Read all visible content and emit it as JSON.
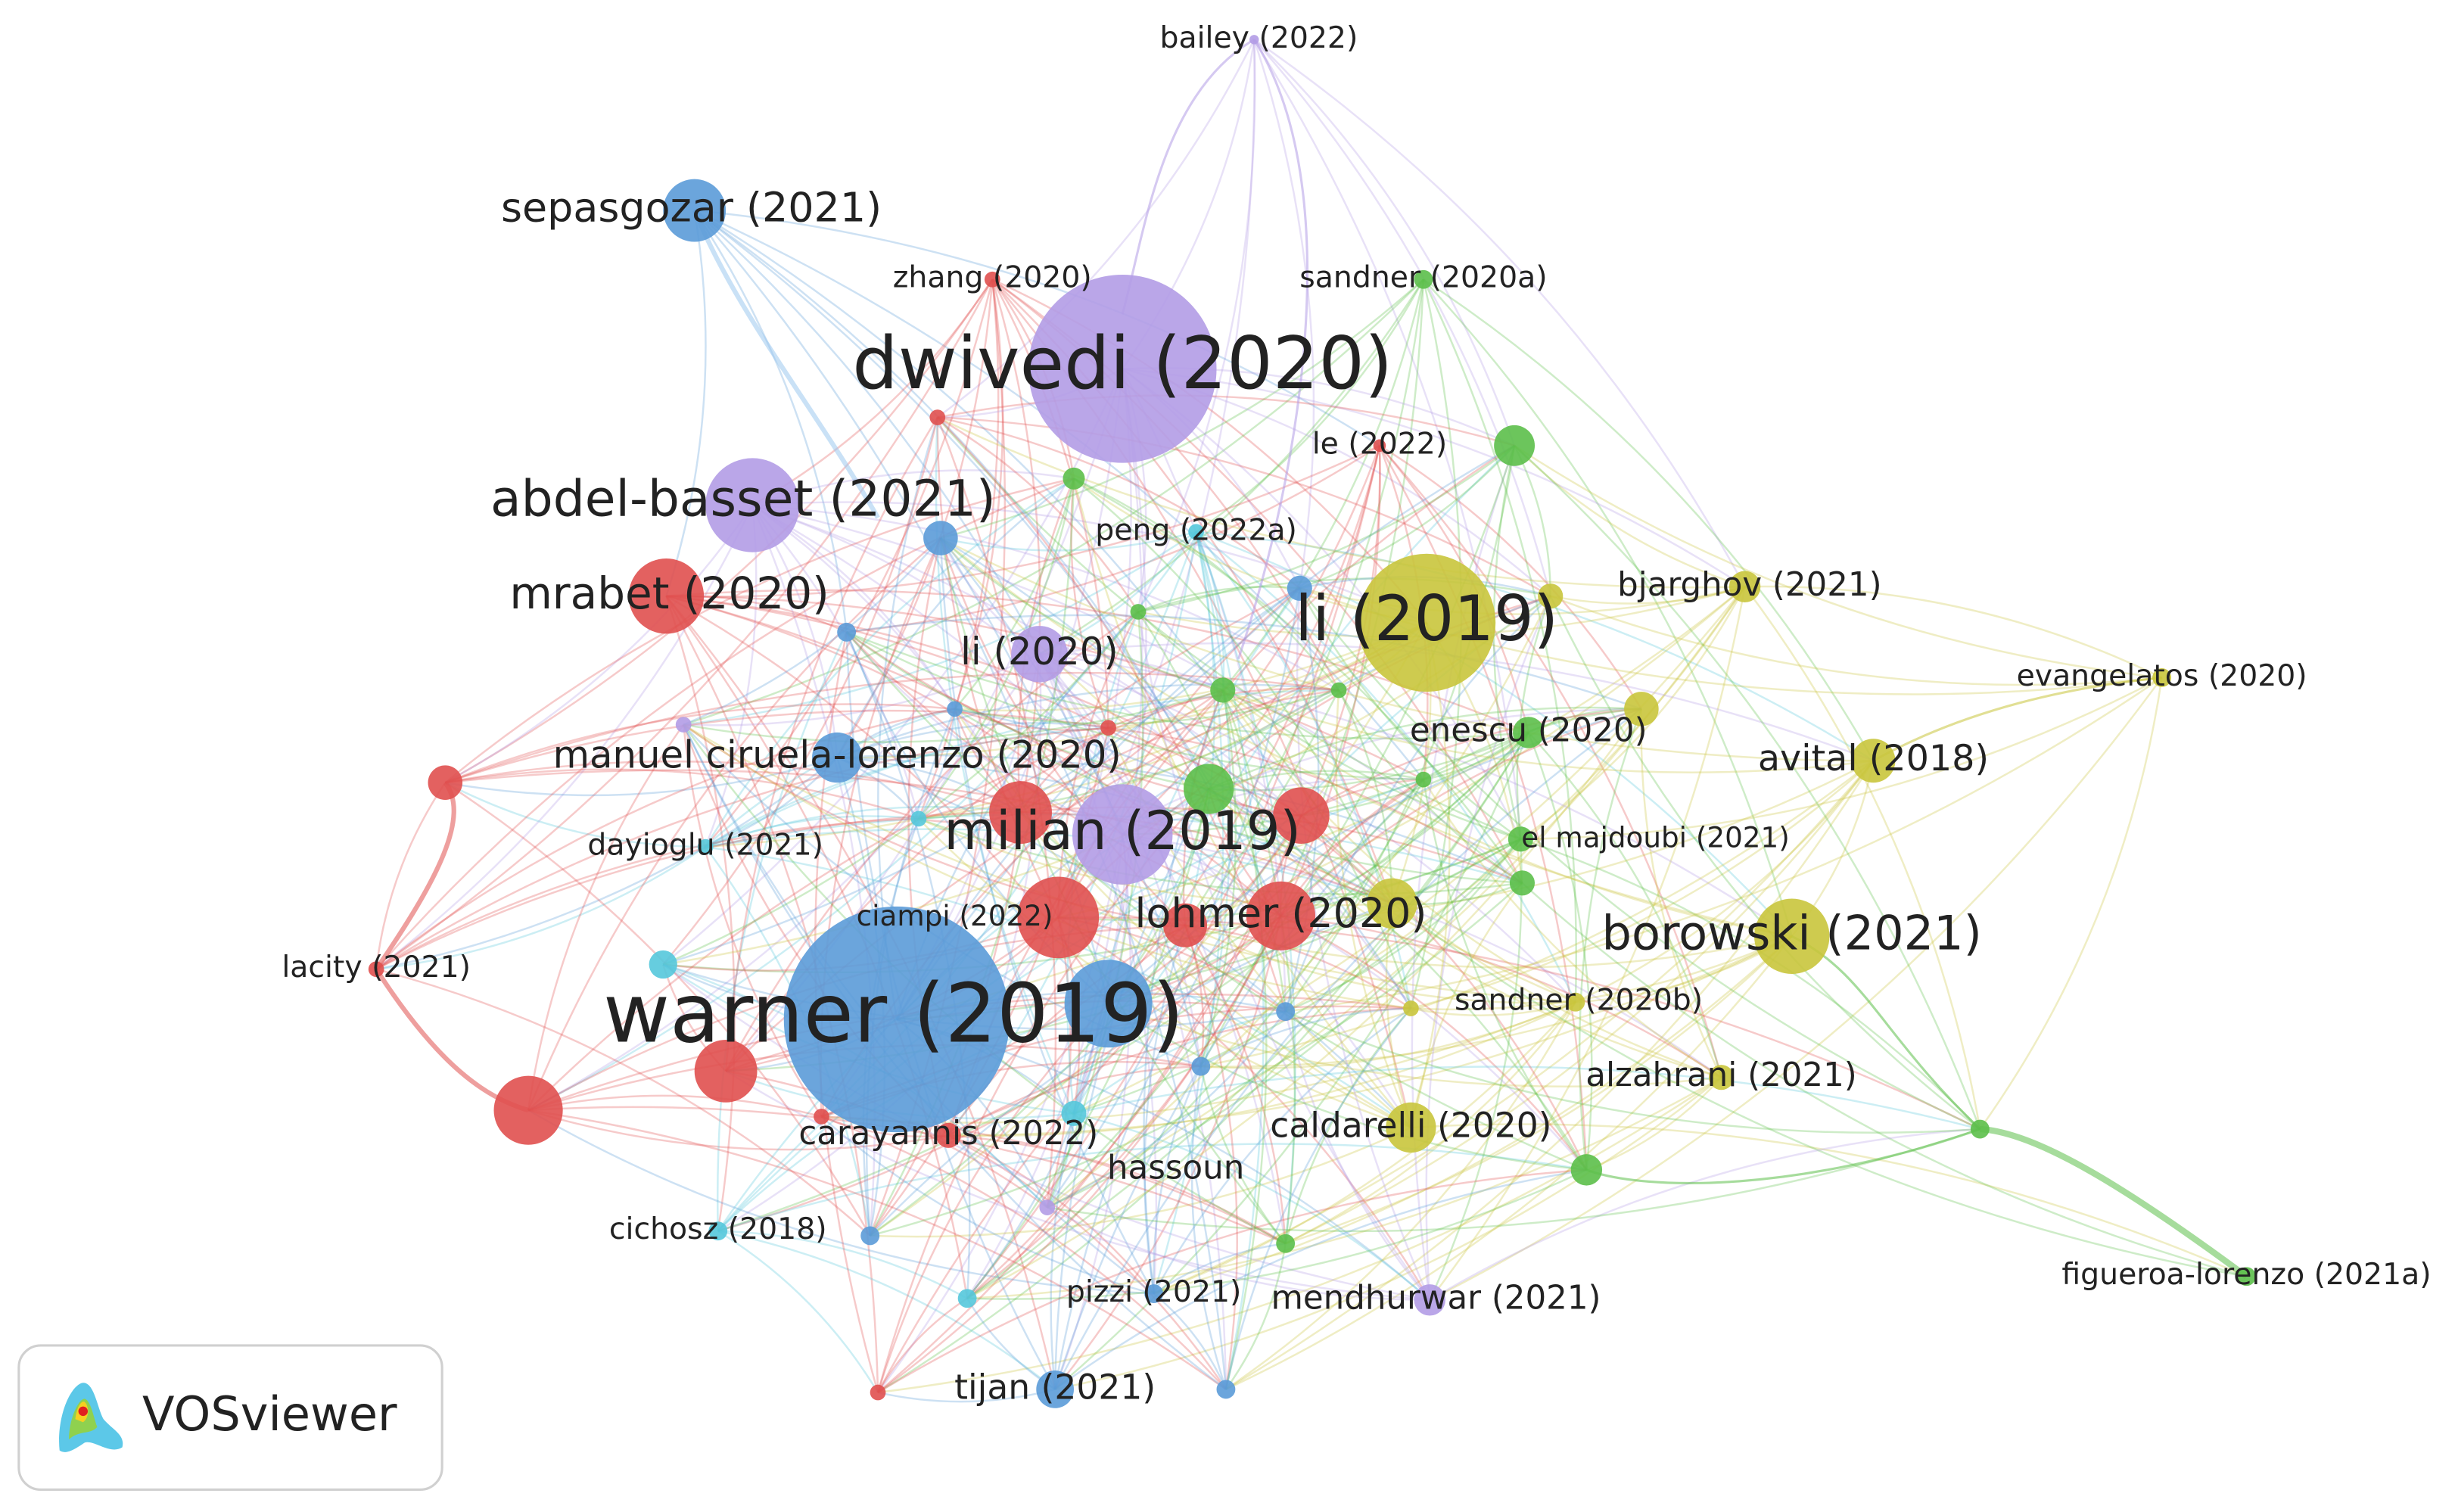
{
  "nodes": [
    {
      "label": "bailey (2022)"
    },
    {
      "label": "sepasgozar (2021)"
    },
    {
      "label": "zhang (2020)"
    },
    {
      "label": "sandner (2020a)"
    },
    {
      "label": "dwivedi (2020)"
    },
    {
      "label": "le (2022)"
    },
    {
      "label": "abdel-basset (2021)"
    },
    {
      "label": "peng (2022a)"
    },
    {
      "label": "bjarghov (2021)"
    },
    {
      "label": "mrabet (2020)"
    },
    {
      "label": "li (2019)"
    },
    {
      "label": "li (2020)"
    },
    {
      "label": "evangelatos (2020)"
    },
    {
      "label": "enescu (2020)"
    },
    {
      "label": "manuel ciruela-lorenzo (2020)"
    },
    {
      "label": "avital (2018)"
    },
    {
      "label": "el majdoubi (2021)"
    },
    {
      "label": "milian (2019)"
    },
    {
      "label": "dayioglu (2021)"
    },
    {
      "label": "borowski (2021)"
    },
    {
      "label": "ciampi (2022)"
    },
    {
      "label": "lohmer (2020)"
    },
    {
      "label": "lacity (2021)"
    },
    {
      "label": "sandner (2020b)"
    },
    {
      "label": "warner (2019)"
    },
    {
      "label": "alzahrani (2021)"
    },
    {
      "label": "caldarelli (2020)"
    },
    {
      "label": "carayannis (2022)"
    },
    {
      "label": "hassoun"
    },
    {
      "label": "cichosz (2018)"
    },
    {
      "label": "figueroa-lorenzo (2021a)"
    },
    {
      "label": "pizzi (2021)"
    },
    {
      "label": "mendhurwar (2021)"
    },
    {
      "label": "tijan (2021)"
    }
  ],
  "logo": {
    "text": "VOSviewer"
  }
}
